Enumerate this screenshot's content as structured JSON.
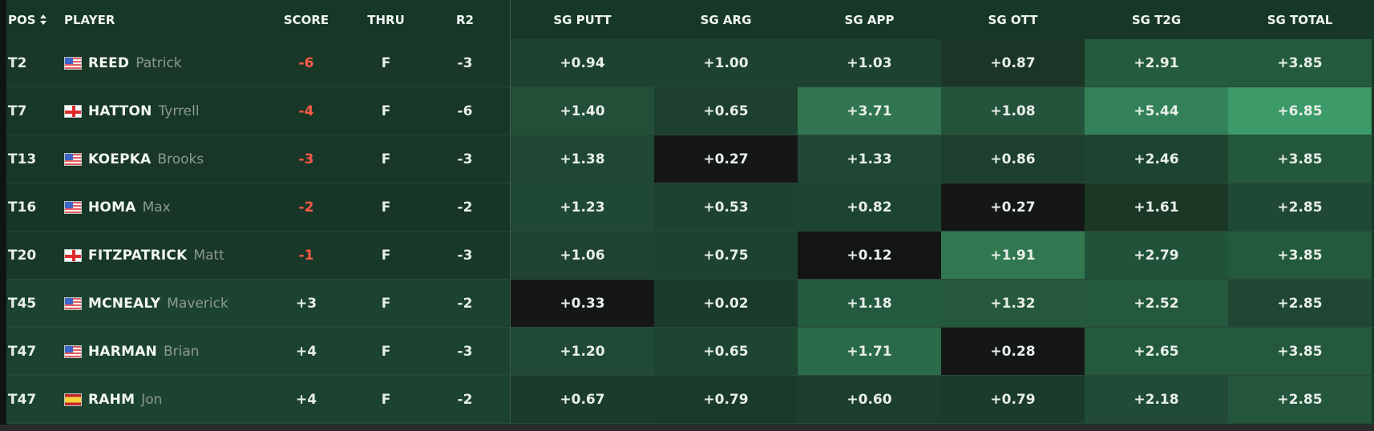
{
  "table": {
    "headers": {
      "pos": "POS",
      "player": "PLAYER",
      "score": "SCORE",
      "thru": "THRU",
      "r2": "R2",
      "sg_putt": "SG PUTT",
      "sg_arg": "SG ARG",
      "sg_app": "SG APP",
      "sg_ott": "SG OTT",
      "sg_t2g": "SG T2G",
      "sg_total": "SG TOTAL"
    },
    "rows": [
      {
        "pos": "T2",
        "flag": "us",
        "last": "REED",
        "first": "Patrick",
        "score": "-6",
        "thru": "F",
        "r2": "-3",
        "sg_putt": "+0.94",
        "sg_arg": "+1.00",
        "sg_app": "+1.03",
        "sg_ott": "+0.87",
        "sg_t2g": "+2.91",
        "sg_total": "+3.85",
        "bg": {
          "left": "#1a3828",
          "sg_putt": "#1d4230",
          "sg_arg": "#1d4230",
          "sg_app": "#1d4230",
          "sg_ott": "#1b3526",
          "sg_t2g": "#245b3d",
          "sg_total": "#245b3d"
        }
      },
      {
        "pos": "T7",
        "flag": "eng",
        "last": "HATTON",
        "first": "Tyrrell",
        "score": "-4",
        "thru": "F",
        "r2": "-6",
        "sg_putt": "+1.40",
        "sg_arg": "+0.65",
        "sg_app": "+3.71",
        "sg_ott": "+1.08",
        "sg_t2g": "+5.44",
        "sg_total": "+6.85",
        "bg": {
          "left": "#173727",
          "sg_putt": "#234f39",
          "sg_arg": "#1d3f2d",
          "sg_app": "#317650",
          "sg_ott": "#25543c",
          "sg_t2g": "#338158",
          "sg_total": "#3b9a67"
        }
      },
      {
        "pos": "T13",
        "flag": "us",
        "last": "KOEPKA",
        "first": "Brooks",
        "score": "-3",
        "thru": "F",
        "r2": "-3",
        "sg_putt": "+1.38",
        "sg_arg": "+0.27",
        "sg_app": "+1.33",
        "sg_ott": "+0.86",
        "sg_t2g": "+2.46",
        "sg_total": "+3.85",
        "bg": {
          "left": "#183728",
          "sg_putt": "#1f4733",
          "sg_arg": "#141716",
          "sg_app": "#1f4734",
          "sg_ott": "#1d3f2d",
          "sg_t2g": "#1d4431",
          "sg_total": "#24583d"
        }
      },
      {
        "pos": "T16",
        "flag": "us",
        "last": "HOMA",
        "first": "Max",
        "score": "-2",
        "thru": "F",
        "r2": "-2",
        "sg_putt": "+1.23",
        "sg_arg": "+0.53",
        "sg_app": "+0.82",
        "sg_ott": "+0.27",
        "sg_t2g": "+1.61",
        "sg_total": "+2.85",
        "bg": {
          "left": "#173627",
          "sg_putt": "#204836",
          "sg_arg": "#1d4330",
          "sg_app": "#1d4432",
          "sg_ott": "#141716",
          "sg_t2g": "#1b3827",
          "sg_total": "#1f4934"
        }
      },
      {
        "pos": "T20",
        "flag": "eng",
        "last": "FITZPATRICK",
        "first": "Matt",
        "score": "-1",
        "thru": "F",
        "r2": "-3",
        "sg_putt": "+1.06",
        "sg_arg": "+0.75",
        "sg_app": "+0.12",
        "sg_ott": "+1.91",
        "sg_t2g": "+2.79",
        "sg_total": "+3.85",
        "bg": {
          "left": "#183828",
          "sg_putt": "#1e4331",
          "sg_arg": "#1d4230",
          "sg_app": "#131615",
          "sg_ott": "#317850",
          "sg_t2g": "#21533a",
          "sg_total": "#235a3d"
        }
      },
      {
        "pos": "T45",
        "flag": "us",
        "last": "MCNEALY",
        "first": "Maverick",
        "score": "+3",
        "thru": "F",
        "r2": "-2",
        "sg_putt": "+0.33",
        "sg_arg": "+0.02",
        "sg_app": "+1.18",
        "sg_ott": "+1.32",
        "sg_t2g": "+2.52",
        "sg_total": "+2.85",
        "bg": {
          "left": "#1c4330",
          "sg_putt": "#141716",
          "sg_arg": "#1a3a2a",
          "sg_app": "#245a3f",
          "sg_ott": "#25583d",
          "sg_t2g": "#24593e",
          "sg_total": "#1f4733"
        }
      },
      {
        "pos": "T47",
        "flag": "us",
        "last": "HARMAN",
        "first": "Brian",
        "score": "+4",
        "thru": "F",
        "r2": "-3",
        "sg_putt": "+1.20",
        "sg_arg": "+0.65",
        "sg_app": "+1.71",
        "sg_ott": "+0.28",
        "sg_t2g": "+2.65",
        "sg_total": "+3.85",
        "bg": {
          "left": "#1c4330",
          "sg_putt": "#204936",
          "sg_arg": "#1d4532",
          "sg_app": "#2b6a48",
          "sg_ott": "#141716",
          "sg_t2g": "#235a3e",
          "sg_total": "#24593e"
        }
      },
      {
        "pos": "T47",
        "flag": "esp",
        "last": "RAHM",
        "first": "Jon",
        "score": "+4",
        "thru": "F",
        "r2": "-2",
        "sg_putt": "+0.67",
        "sg_arg": "+0.79",
        "sg_app": "+0.60",
        "sg_ott": "+0.79",
        "sg_t2g": "+2.18",
        "sg_total": "+2.85",
        "bg": {
          "left": "#1c4330",
          "sg_putt": "#1b3c2b",
          "sg_arg": "#1b3b2a",
          "sg_app": "#1c3e2d",
          "sg_ott": "#1b3c2b",
          "sg_t2g": "#214b37",
          "sg_total": "#24563d"
        }
      }
    ]
  }
}
